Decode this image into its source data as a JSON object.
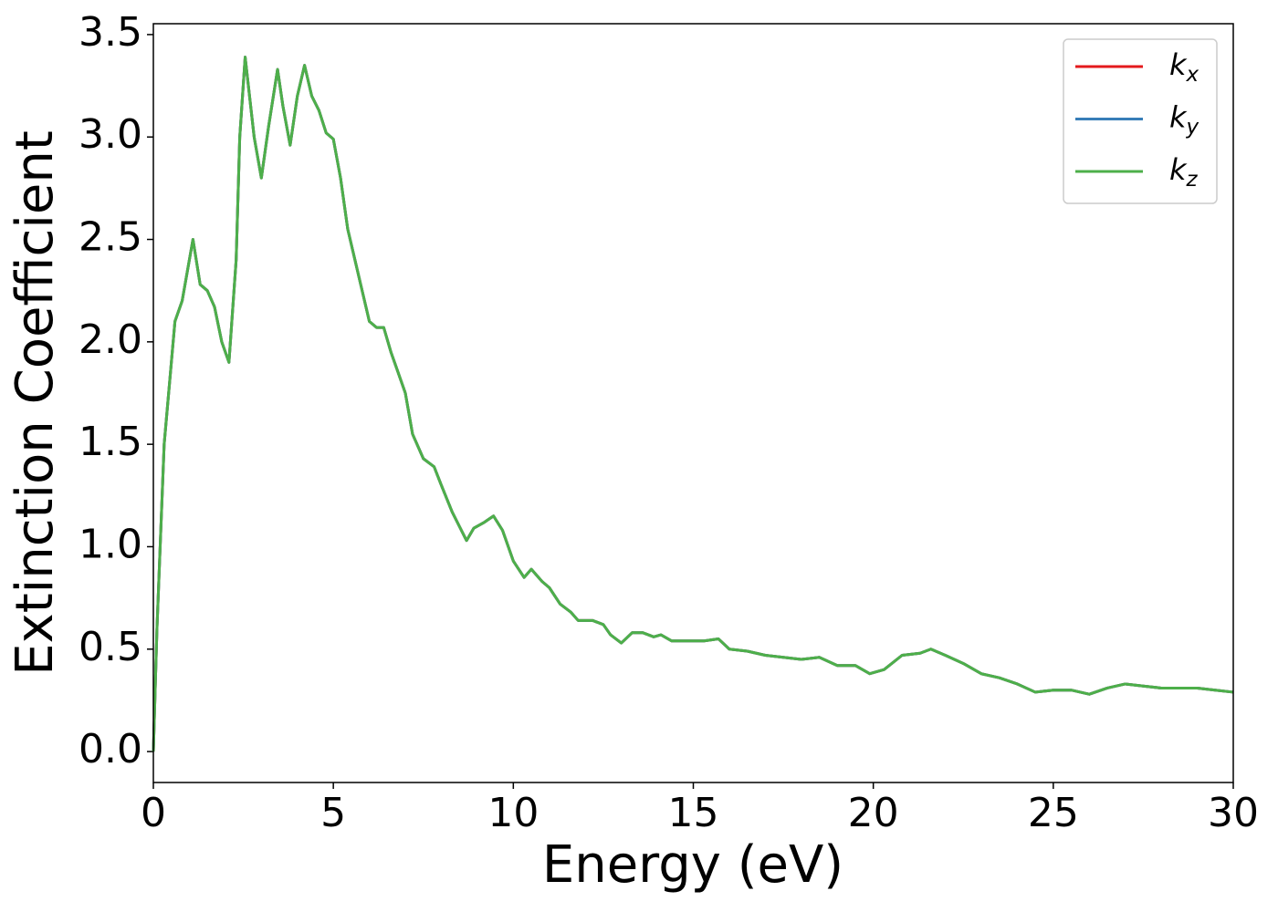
{
  "chart_data": {
    "type": "line",
    "xlabel": "Energy (eV)",
    "ylabel": "Extinction Coefficient",
    "xlim": [
      0,
      30
    ],
    "ylim": [
      -0.151,
      3.553
    ],
    "xticks": [
      0,
      5,
      10,
      15,
      20,
      25,
      30
    ],
    "yticks": [
      {
        "value": 0,
        "label": "0.0"
      },
      0.5,
      {
        "value": 1,
        "label": "1.0"
      },
      1.5,
      {
        "value": 2,
        "label": "2.0"
      },
      2.5,
      {
        "value": 3,
        "label": "3.0"
      },
      3.5
    ],
    "legend": "upper right",
    "x": [
      0,
      0.1,
      0.3,
      0.6,
      0.8,
      1.1,
      1.3,
      1.5,
      1.7,
      1.9,
      2.1,
      2.3,
      2.4,
      2.55,
      2.8,
      3.0,
      3.2,
      3.45,
      3.6,
      3.8,
      4.0,
      4.2,
      4.4,
      4.6,
      4.8,
      5.0,
      5.2,
      5.4,
      5.6,
      5.8,
      6.0,
      6.2,
      6.4,
      6.6,
      6.8,
      7.0,
      7.2,
      7.5,
      7.8,
      8.0,
      8.3,
      8.5,
      8.7,
      8.9,
      9.2,
      9.45,
      9.7,
      10.0,
      10.3,
      10.5,
      10.8,
      11.0,
      11.3,
      11.6,
      11.8,
      12.2,
      12.5,
      12.7,
      13.0,
      13.3,
      13.6,
      13.9,
      14.1,
      14.4,
      14.8,
      15.3,
      15.7,
      16.0,
      16.5,
      17.0,
      17.5,
      18.0,
      18.5,
      19.0,
      19.5,
      19.9,
      20.3,
      20.8,
      21.3,
      21.6,
      22.0,
      22.5,
      23.0,
      23.5,
      24.0,
      24.5,
      25.0,
      25.5,
      26.0,
      26.5,
      27.0,
      27.5,
      28.0,
      28.5,
      29.0,
      29.5,
      30.0
    ],
    "series": [
      {
        "name": "kx",
        "color": "#e41a1c",
        "values": [
          0,
          0.6,
          1.5,
          2.1,
          2.2,
          2.5,
          2.28,
          2.25,
          2.17,
          2.0,
          1.9,
          2.4,
          3.0,
          3.39,
          3.0,
          2.8,
          3.05,
          3.33,
          3.15,
          2.96,
          3.2,
          3.35,
          3.2,
          3.13,
          3.02,
          2.99,
          2.8,
          2.55,
          2.4,
          2.25,
          2.1,
          2.07,
          2.07,
          1.95,
          1.85,
          1.75,
          1.55,
          1.43,
          1.39,
          1.3,
          1.17,
          1.1,
          1.03,
          1.09,
          1.12,
          1.15,
          1.08,
          0.93,
          0.85,
          0.89,
          0.83,
          0.8,
          0.72,
          0.68,
          0.64,
          0.64,
          0.62,
          0.57,
          0.53,
          0.58,
          0.58,
          0.56,
          0.57,
          0.54,
          0.54,
          0.54,
          0.55,
          0.5,
          0.49,
          0.47,
          0.46,
          0.45,
          0.46,
          0.42,
          0.42,
          0.38,
          0.4,
          0.47,
          0.48,
          0.5,
          0.47,
          0.43,
          0.38,
          0.36,
          0.33,
          0.29,
          0.3,
          0.3,
          0.28,
          0.31,
          0.33,
          0.32,
          0.31,
          0.31,
          0.31,
          0.3,
          0.29
        ]
      },
      {
        "name": "ky",
        "color": "#377eb8",
        "values": [
          0,
          0.6,
          1.5,
          2.1,
          2.2,
          2.5,
          2.28,
          2.25,
          2.17,
          2.0,
          1.9,
          2.4,
          3.0,
          3.39,
          3.0,
          2.8,
          3.05,
          3.33,
          3.15,
          2.96,
          3.2,
          3.35,
          3.2,
          3.13,
          3.02,
          2.99,
          2.8,
          2.55,
          2.4,
          2.25,
          2.1,
          2.07,
          2.07,
          1.95,
          1.85,
          1.75,
          1.55,
          1.43,
          1.39,
          1.3,
          1.17,
          1.1,
          1.03,
          1.09,
          1.12,
          1.15,
          1.08,
          0.93,
          0.85,
          0.89,
          0.83,
          0.8,
          0.72,
          0.68,
          0.64,
          0.64,
          0.62,
          0.57,
          0.53,
          0.58,
          0.58,
          0.56,
          0.57,
          0.54,
          0.54,
          0.54,
          0.55,
          0.5,
          0.49,
          0.47,
          0.46,
          0.45,
          0.46,
          0.42,
          0.42,
          0.38,
          0.4,
          0.47,
          0.48,
          0.5,
          0.47,
          0.43,
          0.38,
          0.36,
          0.33,
          0.29,
          0.3,
          0.3,
          0.28,
          0.31,
          0.33,
          0.32,
          0.31,
          0.31,
          0.31,
          0.3,
          0.29
        ]
      },
      {
        "name": "kz",
        "color": "#4daf4a",
        "values": [
          0,
          0.6,
          1.5,
          2.1,
          2.2,
          2.5,
          2.28,
          2.25,
          2.17,
          2.0,
          1.9,
          2.4,
          3.0,
          3.39,
          3.0,
          2.8,
          3.05,
          3.33,
          3.15,
          2.96,
          3.2,
          3.35,
          3.2,
          3.13,
          3.02,
          2.99,
          2.8,
          2.55,
          2.4,
          2.25,
          2.1,
          2.07,
          2.07,
          1.95,
          1.85,
          1.75,
          1.55,
          1.43,
          1.39,
          1.3,
          1.17,
          1.1,
          1.03,
          1.09,
          1.12,
          1.15,
          1.08,
          0.93,
          0.85,
          0.89,
          0.83,
          0.8,
          0.72,
          0.68,
          0.64,
          0.64,
          0.62,
          0.57,
          0.53,
          0.58,
          0.58,
          0.56,
          0.57,
          0.54,
          0.54,
          0.54,
          0.55,
          0.5,
          0.49,
          0.47,
          0.46,
          0.45,
          0.46,
          0.42,
          0.42,
          0.38,
          0.4,
          0.47,
          0.48,
          0.5,
          0.47,
          0.43,
          0.38,
          0.36,
          0.33,
          0.29,
          0.3,
          0.3,
          0.28,
          0.31,
          0.33,
          0.32,
          0.31,
          0.31,
          0.31,
          0.3,
          0.29
        ]
      }
    ]
  }
}
